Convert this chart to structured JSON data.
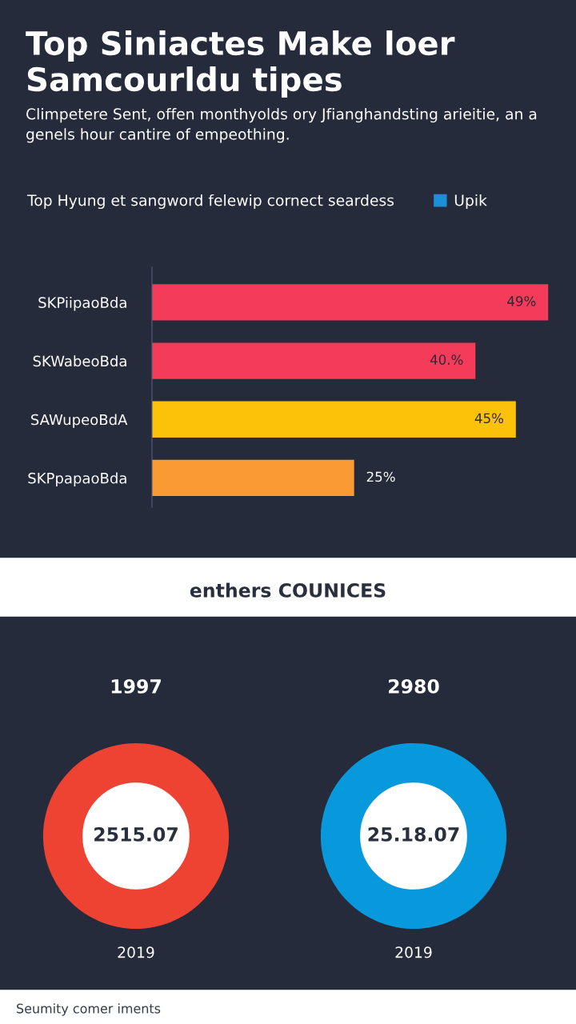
{
  "chart_data": [
    {
      "type": "bar",
      "orientation": "horizontal",
      "title": "Top Siniactes Make loer Samcourldu tipes",
      "subtitle": "Climpetere Sent, offen monthyolds ory Jfianghandsting arieitie, an a genels hour cantire of empeothing.",
      "annotations": [
        "Top Hyung et sangword felewip cornect seardess"
      ],
      "categories": [
        "SKPiipaoBda",
        "SKWabeoBda",
        "SAWupeoBdA",
        "SKPpapaoBda"
      ],
      "series": [
        {
          "name": "Upik",
          "color": "#1a90d9",
          "colors": [
            "#f43b5a",
            "#f43b5a",
            "#fcc20a",
            "#f99a33"
          ],
          "values": [
            49,
            40,
            45,
            25
          ],
          "value_labels": [
            "49%",
            "40.%",
            "45%",
            "25%"
          ]
        }
      ],
      "legend": "top right",
      "grid": false
    },
    {
      "type": "other",
      "title": "enthers COUNICES"
    },
    {
      "type": "donut",
      "title": "1997",
      "categories": [
        null
      ],
      "values": [
        100
      ],
      "colors": [
        "#ee4232"
      ],
      "annotations": [
        "2515.07",
        "2019"
      ]
    },
    {
      "type": "donut",
      "title": "2980",
      "categories": [
        null
      ],
      "values": [
        100
      ],
      "colors": [
        "#0898dc"
      ],
      "annotations": [
        "25.18.07",
        "2019"
      ]
    },
    {
      "type": "other",
      "annotations": [
        "Seumity comer iments"
      ]
    }
  ]
}
